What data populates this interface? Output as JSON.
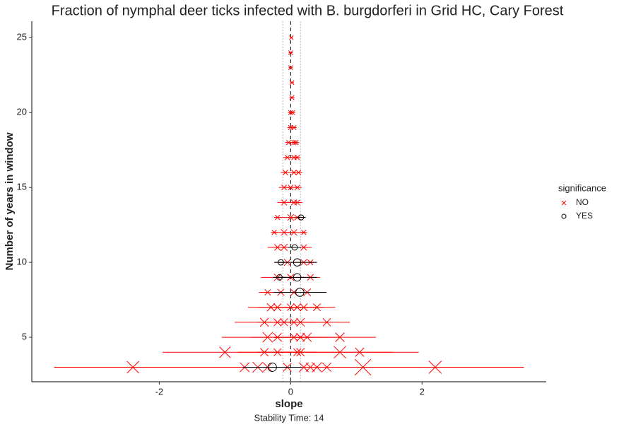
{
  "chart_data": {
    "type": "scatter",
    "title": "Fraction of nymphal deer ticks infected with B. burgdorferi in Grid HC, Cary Forest",
    "x_label": "slope",
    "y_label": "Number of years in window",
    "caption": "Stability Time: 14",
    "legend_title": "significance",
    "xlim": [
      -3.94,
      3.89
    ],
    "ylim": [
      2.03,
      26.1
    ],
    "xticks": [
      -2,
      0,
      2
    ],
    "yticks": [
      5,
      10,
      15,
      20,
      25
    ],
    "reference_line": 0,
    "reference_band": [
      -0.12,
      0.15
    ],
    "series": [
      {
        "name": "NO",
        "color": "#ff0000",
        "marker": "x",
        "x": [
          -2.4,
          -0.7,
          -0.5,
          -0.35,
          -0.05,
          0.2,
          0.3,
          0.4,
          0.55,
          1.1,
          2.2,
          -1.0,
          -0.4,
          -0.2,
          0.1,
          0.15,
          0.75,
          1.05,
          -0.35,
          -0.2,
          0.05,
          0.15,
          0.25,
          0.75,
          -0.4,
          -0.2,
          -0.1,
          0.05,
          0.15,
          0.55,
          -0.3,
          -0.2,
          0.0,
          0.1,
          0.2,
          0.4,
          -0.35,
          -0.15,
          0.05,
          0.25,
          -0.2,
          0.0,
          0.3,
          -0.05,
          0.2,
          0.3,
          -0.2,
          -0.1,
          0.2,
          -0.25,
          -0.1,
          0.05,
          0.2,
          -0.2,
          0.0,
          0.1,
          -0.1,
          0.05,
          0.1,
          -0.1,
          0.0,
          0.1,
          -0.08,
          0.05,
          0.12,
          -0.05,
          0.05,
          0.1,
          -0.03,
          0.05,
          0.08,
          0.0,
          0.05,
          0.0,
          0.03,
          0.02,
          0.02,
          0.0,
          0.0,
          0.01
        ],
        "y": [
          3,
          3,
          3,
          3,
          3,
          3,
          3,
          3,
          3,
          3,
          3,
          4,
          4,
          4,
          4,
          4,
          4,
          4,
          5,
          5,
          5,
          5,
          5,
          5,
          6,
          6,
          6,
          6,
          6,
          6,
          7,
          7,
          7,
          7,
          7,
          7,
          8,
          8,
          8,
          8,
          9,
          9,
          9,
          10,
          10,
          10,
          11,
          11,
          11,
          12,
          12,
          12,
          12,
          13,
          13,
          13,
          14,
          14,
          14,
          15,
          15,
          15,
          16,
          16,
          16,
          17,
          17,
          17,
          18,
          18,
          18,
          19,
          19,
          20,
          20,
          21,
          22,
          23,
          24,
          25
        ],
        "error": [
          1.2,
          0.6,
          0.8,
          0.5,
          0.4,
          0.6,
          0.5,
          0.7,
          0.5,
          2.45,
          1.35,
          0.95,
          0.4,
          0.3,
          0.3,
          0.4,
          1.2,
          0.5,
          0.7,
          0.4,
          0.3,
          0.4,
          0.5,
          0.55,
          0.45,
          0.3,
          0.3,
          0.3,
          0.4,
          0.35,
          0.35,
          0.3,
          0.25,
          0.3,
          0.3,
          0.28,
          0.13,
          0.2,
          0.25,
          0.3,
          0.25,
          0.2,
          0.15,
          0.2,
          0.15,
          0.1,
          0.15,
          0.2,
          0.12,
          0.05,
          0.15,
          0.15,
          0.05,
          0.05,
          0.15,
          0.1,
          0.1,
          0.1,
          0.08,
          0.08,
          0.08,
          0.07,
          0.07,
          0.07,
          0.06,
          0.06,
          0.06,
          0.05,
          0.05,
          0.05,
          0.05,
          0.05,
          0.04,
          0.04,
          0.04,
          0.04,
          0.03,
          0.03,
          0.03,
          0.02
        ]
      },
      {
        "name": "YES",
        "color": "#000000",
        "marker": "o",
        "x": [
          -0.28,
          0.14,
          -0.17,
          0.1,
          -0.15,
          0.1,
          0.06,
          0.16
        ],
        "y": [
          3,
          8,
          9,
          9,
          10,
          10,
          11,
          13
        ],
        "error": [
          0.45,
          0.4,
          0.1,
          0.3,
          0.1,
          0.3,
          0.1,
          0.07
        ]
      }
    ]
  }
}
